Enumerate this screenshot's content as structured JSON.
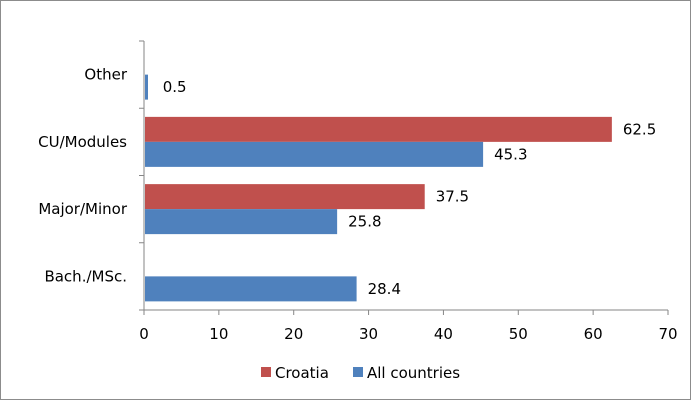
{
  "chart_data": {
    "type": "bar",
    "orientation": "horizontal",
    "categories": [
      "Bach./MSc.",
      "Major/Minor",
      "CU/Modules",
      "Other"
    ],
    "series": [
      {
        "name": "Croatia",
        "color": "#c0504d",
        "values": [
          null,
          37.5,
          62.5,
          null
        ]
      },
      {
        "name": "All countries",
        "color": "#4f81bd",
        "values": [
          28.4,
          25.8,
          45.3,
          0.5
        ]
      }
    ],
    "value_labels": {
      "Croatia": [
        "",
        "37.5",
        "62.5",
        ""
      ],
      "All countries": [
        "28.4",
        "25.8",
        "45.3",
        "0.5"
      ]
    },
    "xlim": [
      0,
      70
    ],
    "xticks": [
      0,
      10,
      20,
      30,
      40,
      50,
      60,
      70
    ],
    "title": "",
    "xlabel": "",
    "ylabel": "",
    "grid": false,
    "legend_position": "bottom"
  }
}
